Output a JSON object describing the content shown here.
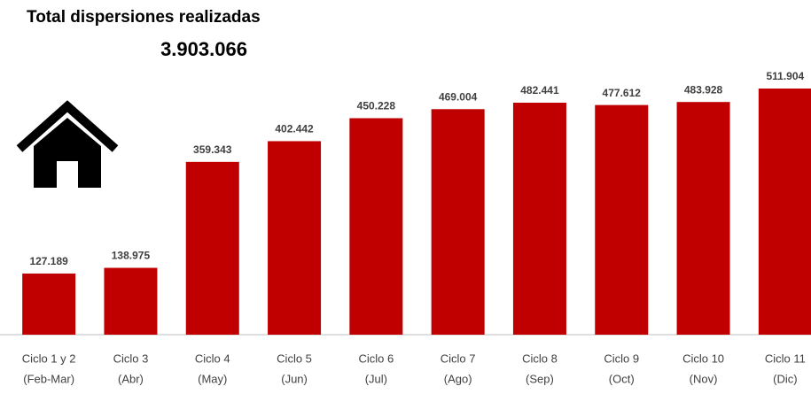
{
  "chart_data": {
    "type": "bar",
    "title": "Total dispersiones realizadas",
    "subtitle": "3.903.066",
    "categories": [
      [
        "Ciclo 1 y 2",
        "(Feb-Mar)"
      ],
      [
        "Ciclo 3",
        "(Abr)"
      ],
      [
        "Ciclo 4",
        "(May)"
      ],
      [
        "Ciclo 5",
        "(Jun)"
      ],
      [
        "Ciclo 6",
        "(Jul)"
      ],
      [
        "Ciclo 7",
        "(Ago)"
      ],
      [
        "Ciclo 8",
        "(Sep)"
      ],
      [
        "Ciclo 9",
        "(Oct)"
      ],
      [
        "Ciclo 10",
        "(Nov)"
      ],
      [
        "Ciclo 11",
        "(Dic)"
      ]
    ],
    "values": [
      127189,
      138975,
      359343,
      402442,
      450228,
      469004,
      482441,
      477612,
      483928,
      511904
    ],
    "value_labels": [
      "127.189",
      "138.975",
      "359.343",
      "402.442",
      "450.228",
      "469.004",
      "482.441",
      "477.612",
      "483.928",
      "511.904"
    ],
    "color": "#c00000"
  }
}
